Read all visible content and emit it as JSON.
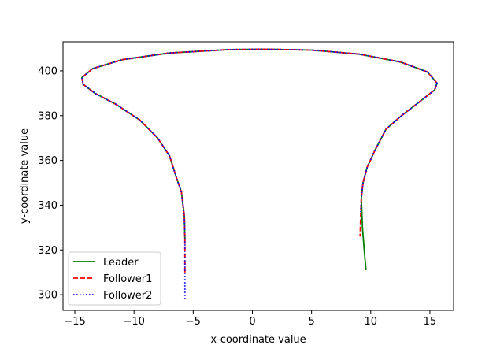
{
  "chart_data": {
    "type": "line",
    "title": "",
    "xlabel": "x-coordinate value",
    "ylabel": "y-coordinate value",
    "xlim": [
      -16,
      17
    ],
    "ylim": [
      293,
      413
    ],
    "xticks": [
      -15,
      -10,
      -5,
      0,
      5,
      10,
      15
    ],
    "yticks": [
      300,
      320,
      340,
      360,
      380,
      400
    ],
    "grid": false,
    "legend_position": "lower-left",
    "series": [
      {
        "name": "Leader",
        "color": "#008000",
        "style": "solid",
        "x": [
          -5.7,
          -5.75,
          -6.0,
          -6.4,
          -7.0,
          -8.0,
          -9.5,
          -11.5,
          -13.3,
          -14.3,
          -14.4,
          -13.5,
          -11.0,
          -7.0,
          -2.0,
          1.0,
          5.0,
          9.0,
          12.5,
          14.8,
          15.6,
          15.4,
          14.2,
          12.6,
          11.3,
          10.4,
          9.7,
          9.35,
          9.2,
          9.3,
          9.45,
          9.6
        ],
        "y": [
          325,
          335,
          346,
          352,
          362,
          370,
          378,
          385,
          390,
          394,
          397,
          401,
          405,
          408,
          409.5,
          409.7,
          409.3,
          407.5,
          404.0,
          399.5,
          394.5,
          391.5,
          386.5,
          380.0,
          374.0,
          365.0,
          357.0,
          350.0,
          343.0,
          330.0,
          320.0,
          311.0
        ]
      },
      {
        "name": "Follower1",
        "color": "#ff0000",
        "style": "dashed",
        "x": [
          -5.7,
          -5.7,
          -5.75,
          -6.0,
          -6.4,
          -7.0,
          -8.0,
          -9.5,
          -11.5,
          -13.3,
          -14.3,
          -14.4,
          -13.5,
          -11.0,
          -7.0,
          -2.0,
          1.0,
          5.0,
          9.0,
          12.5,
          14.8,
          15.6,
          15.4,
          14.2,
          12.6,
          11.3,
          10.4,
          9.7,
          9.35,
          9.2,
          9.15,
          9.1
        ],
        "y": [
          310,
          325,
          335,
          346,
          352,
          362,
          370,
          378,
          385,
          390,
          394,
          397,
          401,
          405,
          408,
          409.5,
          409.7,
          409.3,
          407.5,
          404.0,
          399.5,
          394.5,
          391.5,
          386.5,
          380.0,
          374.0,
          365.0,
          357.0,
          350.0,
          343.0,
          335.0,
          326.0
        ]
      },
      {
        "name": "Follower2",
        "color": "#0000ff",
        "style": "dotted",
        "x": [
          -5.7,
          -5.7,
          -5.7,
          -5.75,
          -6.0,
          -6.4,
          -7.0,
          -8.0,
          -9.5,
          -11.5,
          -13.3,
          -14.3,
          -14.4,
          -13.5,
          -11.0,
          -7.0,
          -2.0,
          1.0,
          5.0,
          9.0,
          12.5,
          14.8,
          15.6,
          15.4,
          14.2,
          12.6,
          11.3,
          10.4,
          9.7,
          9.35,
          9.2,
          9.15
        ],
        "y": [
          298,
          310,
          325,
          335,
          346,
          352,
          362,
          370,
          378,
          385,
          390,
          394,
          397,
          401,
          405,
          408,
          409.5,
          409.7,
          409.3,
          407.5,
          404.0,
          399.5,
          394.5,
          391.5,
          386.5,
          380.0,
          374.0,
          365.0,
          357.0,
          350.0,
          343.0,
          336.0
        ]
      }
    ]
  }
}
